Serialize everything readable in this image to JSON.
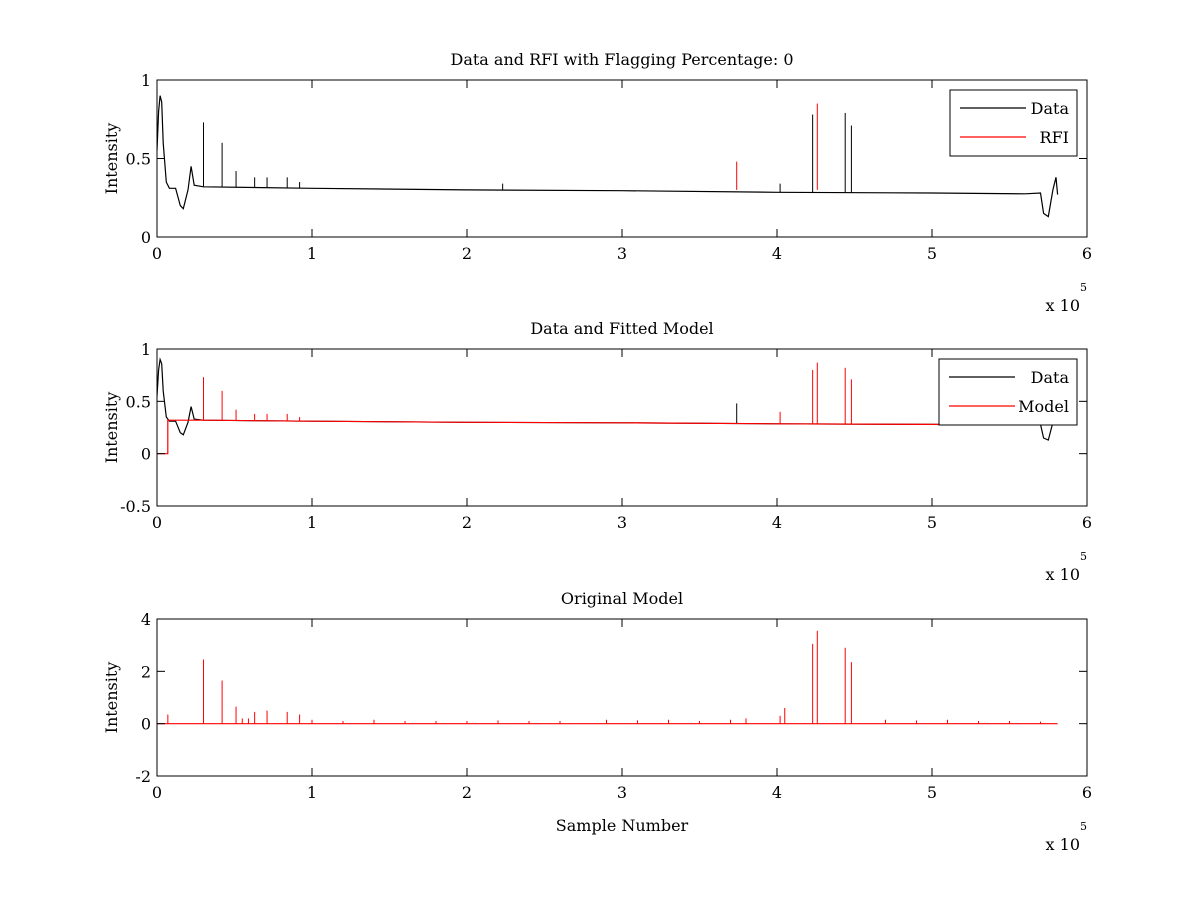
{
  "chart_data": [
    {
      "type": "line",
      "title": "Data and RFI with Flagging Percentage: 0",
      "xlabel": "",
      "ylabel": "Intensity",
      "xlim": [
        0,
        600000
      ],
      "ylim": [
        0,
        1
      ],
      "xticks": [
        0,
        1,
        2,
        3,
        4,
        5,
        6
      ],
      "yticks": [
        "0",
        "0.5",
        "1"
      ],
      "yticks_values": [
        0,
        0.5,
        1
      ],
      "x_exponent_base": "x 10",
      "x_exponent_power": "5",
      "legend": {
        "position": "top-right",
        "entries": [
          "Data",
          "RFI"
        ]
      },
      "series": [
        {
          "name": "Data",
          "color": "#000000",
          "kind": "baseline",
          "baseline": [
            [
              0,
              0.55
            ],
            [
              1000,
              0.8
            ],
            [
              2000,
              0.9
            ],
            [
              3000,
              0.86
            ],
            [
              4000,
              0.6
            ],
            [
              6000,
              0.35
            ],
            [
              8000,
              0.31
            ],
            [
              12000,
              0.31
            ],
            [
              15000,
              0.2
            ],
            [
              17000,
              0.18
            ],
            [
              20000,
              0.3
            ],
            [
              22000,
              0.45
            ],
            [
              24000,
              0.33
            ],
            [
              30000,
              0.32
            ],
            [
              100000,
              0.31
            ],
            [
              200000,
              0.3
            ],
            [
              300000,
              0.295
            ],
            [
              400000,
              0.285
            ],
            [
              500000,
              0.28
            ],
            [
              560000,
              0.275
            ],
            [
              570000,
              0.28
            ],
            [
              572000,
              0.15
            ],
            [
              575000,
              0.13
            ],
            [
              578000,
              0.3
            ],
            [
              580000,
              0.38
            ],
            [
              581000,
              0.27
            ]
          ],
          "spikes": [
            [
              30000,
              0.73
            ],
            [
              42000,
              0.6
            ],
            [
              51000,
              0.42
            ],
            [
              63000,
              0.38
            ],
            [
              71000,
              0.38
            ],
            [
              84000,
              0.38
            ],
            [
              92000,
              0.35
            ],
            [
              223000,
              0.34
            ],
            [
              402000,
              0.34
            ],
            [
              423000,
              0.78
            ],
            [
              444000,
              0.79
            ],
            [
              448000,
              0.71
            ]
          ]
        },
        {
          "name": "RFI",
          "color": "#ff0000",
          "kind": "spikes",
          "spikes": [
            [
              374000,
              0.48
            ],
            [
              426000,
              0.85
            ]
          ]
        }
      ]
    },
    {
      "type": "line",
      "title": "Data and Fitted Model",
      "xlabel": "",
      "ylabel": "Intensity",
      "xlim": [
        0,
        600000
      ],
      "ylim": [
        -0.5,
        1
      ],
      "xticks": [
        0,
        1,
        2,
        3,
        4,
        5,
        6
      ],
      "yticks": [
        "-0.5",
        "0",
        "0.5",
        "1"
      ],
      "yticks_values": [
        -0.5,
        0,
        0.5,
        1
      ],
      "x_exponent_base": "x 10",
      "x_exponent_power": "5",
      "legend": {
        "position": "top-right",
        "entries": [
          "Data",
          "Model"
        ]
      },
      "series": [
        {
          "name": "Data",
          "color": "#000000",
          "kind": "baseline",
          "baseline": [
            [
              0,
              0.55
            ],
            [
              1000,
              0.8
            ],
            [
              2000,
              0.9
            ],
            [
              3000,
              0.86
            ],
            [
              4000,
              0.6
            ],
            [
              6000,
              0.35
            ],
            [
              8000,
              0.31
            ],
            [
              12000,
              0.31
            ],
            [
              15000,
              0.2
            ],
            [
              17000,
              0.18
            ],
            [
              20000,
              0.3
            ],
            [
              22000,
              0.45
            ],
            [
              24000,
              0.33
            ],
            [
              30000,
              0.32
            ],
            [
              100000,
              0.31
            ],
            [
              200000,
              0.3
            ],
            [
              300000,
              0.295
            ],
            [
              400000,
              0.285
            ],
            [
              500000,
              0.28
            ],
            [
              560000,
              0.275
            ],
            [
              570000,
              0.28
            ],
            [
              572000,
              0.15
            ],
            [
              575000,
              0.13
            ],
            [
              578000,
              0.3
            ],
            [
              580000,
              0.38
            ],
            [
              581000,
              0.27
            ]
          ],
          "spikes": [
            [
              374000,
              0.48
            ]
          ]
        },
        {
          "name": "Model",
          "color": "#ff0000",
          "kind": "baseline",
          "baseline": [
            [
              0,
              0
            ],
            [
              7000,
              0
            ],
            [
              7000,
              0.32
            ],
            [
              30000,
              0.32
            ],
            [
              100000,
              0.31
            ],
            [
              200000,
              0.3
            ],
            [
              300000,
              0.295
            ],
            [
              400000,
              0.285
            ],
            [
              500000,
              0.28
            ],
            [
              581000,
              0.275
            ]
          ],
          "spikes": [
            [
              30000,
              0.73
            ],
            [
              42000,
              0.6
            ],
            [
              51000,
              0.42
            ],
            [
              63000,
              0.38
            ],
            [
              71000,
              0.38
            ],
            [
              84000,
              0.38
            ],
            [
              92000,
              0.35
            ],
            [
              402000,
              0.4
            ],
            [
              423000,
              0.8
            ],
            [
              426000,
              0.87
            ],
            [
              444000,
              0.82
            ],
            [
              448000,
              0.71
            ]
          ]
        }
      ]
    },
    {
      "type": "line",
      "title": "Original Model",
      "xlabel": "Sample Number",
      "ylabel": "Intensity",
      "xlim": [
        0,
        600000
      ],
      "ylim": [
        -2,
        4
      ],
      "xticks": [
        0,
        1,
        2,
        3,
        4,
        5,
        6
      ],
      "yticks": [
        "-2",
        "0",
        "2",
        "4"
      ],
      "yticks_values": [
        -2,
        0,
        2,
        4
      ],
      "x_exponent_base": "x 10",
      "x_exponent_power": "5",
      "legend": null,
      "series": [
        {
          "name": "",
          "color": "#ff0000",
          "kind": "baseline",
          "baseline": [
            [
              0,
              0
            ],
            [
              581000,
              0
            ]
          ],
          "spikes": [
            [
              7000,
              0.35
            ],
            [
              30000,
              2.45
            ],
            [
              42000,
              1.65
            ],
            [
              51000,
              0.65
            ],
            [
              55000,
              0.2
            ],
            [
              59000,
              0.2
            ],
            [
              63000,
              0.45
            ],
            [
              71000,
              0.5
            ],
            [
              84000,
              0.45
            ],
            [
              92000,
              0.35
            ],
            [
              100000,
              0.15
            ],
            [
              120000,
              0.1
            ],
            [
              140000,
              0.15
            ],
            [
              160000,
              0.1
            ],
            [
              180000,
              0.1
            ],
            [
              200000,
              0.1
            ],
            [
              220000,
              0.12
            ],
            [
              240000,
              0.1
            ],
            [
              260000,
              0.1
            ],
            [
              290000,
              0.15
            ],
            [
              310000,
              0.12
            ],
            [
              330000,
              0.15
            ],
            [
              350000,
              0.1
            ],
            [
              370000,
              0.15
            ],
            [
              380000,
              0.2
            ],
            [
              402000,
              0.3
            ],
            [
              405000,
              0.6
            ],
            [
              423000,
              3.05
            ],
            [
              426000,
              3.55
            ],
            [
              444000,
              2.9
            ],
            [
              448000,
              2.35
            ],
            [
              470000,
              0.15
            ],
            [
              490000,
              0.12
            ],
            [
              510000,
              0.15
            ],
            [
              530000,
              0.1
            ],
            [
              550000,
              0.1
            ],
            [
              570000,
              0.08
            ]
          ]
        }
      ]
    }
  ]
}
